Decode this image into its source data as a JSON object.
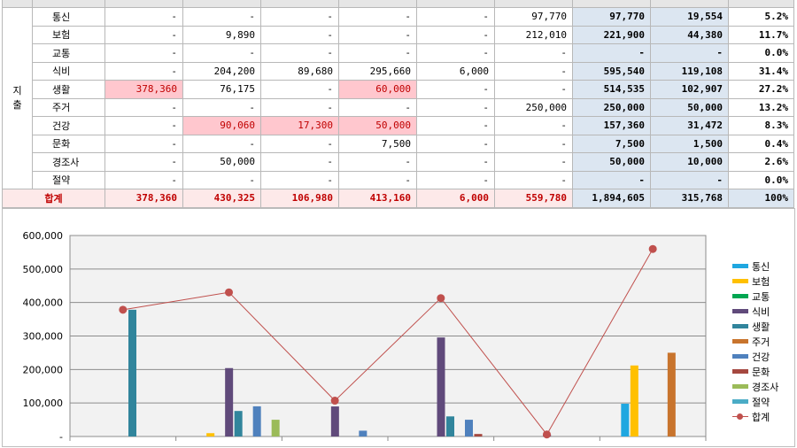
{
  "table": {
    "side_label": "지\n출",
    "total_label": "합계",
    "rows": [
      {
        "cat": "통신",
        "cells": [
          "-",
          "-",
          "-",
          "-",
          "-",
          "97,770"
        ],
        "sum": "97,770",
        "avg": "19,554",
        "pct": "5.2%"
      },
      {
        "cat": "보험",
        "cells": [
          "-",
          "9,890",
          "-",
          "-",
          "-",
          "212,010"
        ],
        "sum": "221,900",
        "avg": "44,380",
        "pct": "11.7%"
      },
      {
        "cat": "교통",
        "cells": [
          "-",
          "-",
          "-",
          "-",
          "-",
          "-"
        ],
        "sum": "-",
        "avg": "-",
        "pct": "0.0%"
      },
      {
        "cat": "식비",
        "cells": [
          "-",
          "204,200",
          "89,680",
          "295,660",
          "6,000",
          "-"
        ],
        "sum": "595,540",
        "avg": "119,108",
        "pct": "31.4%"
      },
      {
        "cat": "생활",
        "cells": [
          "378,360",
          "76,175",
          "-",
          "60,000",
          "-",
          "-"
        ],
        "sum": "514,535",
        "avg": "102,907",
        "pct": "27.2%"
      },
      {
        "cat": "주거",
        "cells": [
          "-",
          "-",
          "-",
          "-",
          "-",
          "250,000"
        ],
        "sum": "250,000",
        "avg": "50,000",
        "pct": "13.2%"
      },
      {
        "cat": "건강",
        "cells": [
          "-",
          "90,060",
          "17,300",
          "50,000",
          "-",
          "-"
        ],
        "sum": "157,360",
        "avg": "31,472",
        "pct": "8.3%"
      },
      {
        "cat": "문화",
        "cells": [
          "-",
          "-",
          "-",
          "7,500",
          "-",
          "-"
        ],
        "sum": "7,500",
        "avg": "1,500",
        "pct": "0.4%"
      },
      {
        "cat": "경조사",
        "cells": [
          "-",
          "50,000",
          "-",
          "-",
          "-",
          "-"
        ],
        "sum": "50,000",
        "avg": "10,000",
        "pct": "2.6%"
      },
      {
        "cat": "절약",
        "cells": [
          "-",
          "-",
          "-",
          "-",
          "-",
          "-"
        ],
        "sum": "-",
        "avg": "-",
        "pct": "0.0%"
      }
    ],
    "totals": {
      "cells": [
        "378,360",
        "430,325",
        "106,980",
        "413,160",
        "6,000",
        "559,780"
      ],
      "sum": "1,894,605",
      "avg": "315,768",
      "pct": "100%"
    }
  },
  "chart_data": {
    "type": "bar",
    "ylim": [
      0,
      600000
    ],
    "yticks": [
      "-",
      "100,000",
      "200,000",
      "300,000",
      "400,000",
      "500,000",
      "600,000"
    ],
    "group_count": 6,
    "series": [
      {
        "name": "통신",
        "color": "#1fa7e0",
        "values": [
          0,
          0,
          0,
          0,
          0,
          97770
        ]
      },
      {
        "name": "보험",
        "color": "#ffc000",
        "values": [
          0,
          9890,
          0,
          0,
          0,
          212010
        ]
      },
      {
        "name": "교통",
        "color": "#00a651",
        "values": [
          0,
          0,
          0,
          0,
          0,
          0
        ]
      },
      {
        "name": "식비",
        "color": "#604a7b",
        "values": [
          0,
          204200,
          89680,
          295660,
          6000,
          0
        ]
      },
      {
        "name": "생활",
        "color": "#31859c",
        "values": [
          378360,
          76175,
          0,
          60000,
          0,
          0
        ]
      },
      {
        "name": "주거",
        "color": "#c8742d",
        "values": [
          0,
          0,
          0,
          0,
          0,
          250000
        ]
      },
      {
        "name": "건강",
        "color": "#4f81bd",
        "values": [
          0,
          90060,
          17300,
          50000,
          0,
          0
        ]
      },
      {
        "name": "문화",
        "color": "#a54840",
        "values": [
          0,
          0,
          0,
          7500,
          0,
          0
        ]
      },
      {
        "name": "경조사",
        "color": "#9bbb59",
        "values": [
          0,
          50000,
          0,
          0,
          0,
          0
        ]
      },
      {
        "name": "절약",
        "color": "#4bacc6",
        "values": [
          0,
          0,
          0,
          0,
          0,
          0
        ]
      }
    ],
    "line": {
      "name": "합계",
      "color": "#c0504d",
      "values": [
        378360,
        430325,
        106980,
        413160,
        6000,
        559780
      ]
    }
  }
}
